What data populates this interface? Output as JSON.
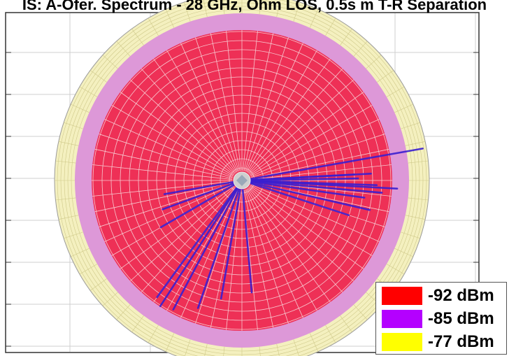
{
  "chart_data": {
    "type": "polar-area-map",
    "title": "IS: A-Ofer. Spectrum - 28 GHz, Ohm LOS, 0.5s m T-R Separation",
    "legend": [
      {
        "label": "-92 dBm",
        "color": "#ff0000"
      },
      {
        "label": "-85 dBm",
        "color": "#b400ff"
      },
      {
        "label": "-77 dBm",
        "color": "#ffff00"
      }
    ],
    "legend_position": "bottom-right",
    "regions": [
      {
        "level": "-77 dBm",
        "color": "#f4f0bf"
      },
      {
        "level": "-85 dBm",
        "color": "#dd98d8"
      },
      {
        "level": "-92 dBm",
        "color": "#ee3056"
      }
    ],
    "grid": true,
    "ray_color": "#3a1fd0",
    "rays": [
      {
        "angle_deg": 10,
        "length": 0.98
      },
      {
        "angle_deg": 3,
        "length": 0.69
      },
      {
        "angle_deg": 3,
        "length": 0.6
      },
      {
        "angle_deg": 1,
        "length": 0.62
      },
      {
        "angle_deg": -2,
        "length": 0.72
      },
      {
        "angle_deg": -3,
        "length": 0.83
      },
      {
        "angle_deg": -5,
        "length": 0.75
      },
      {
        "angle_deg": -8,
        "length": 0.66
      },
      {
        "angle_deg": -13,
        "length": 0.7
      },
      {
        "angle_deg": -18,
        "length": 0.6
      },
      {
        "angle_deg": -85,
        "length": 0.6
      },
      {
        "angle_deg": -100,
        "length": 0.64
      },
      {
        "angle_deg": -109,
        "length": 0.72
      },
      {
        "angle_deg": -118,
        "length": 0.78
      },
      {
        "angle_deg": -123,
        "length": 0.8
      },
      {
        "angle_deg": -126,
        "length": 0.77
      },
      {
        "angle_deg": -150,
        "length": 0.5
      },
      {
        "angle_deg": -160,
        "length": 0.45
      },
      {
        "angle_deg": -170,
        "length": 0.42
      }
    ]
  }
}
